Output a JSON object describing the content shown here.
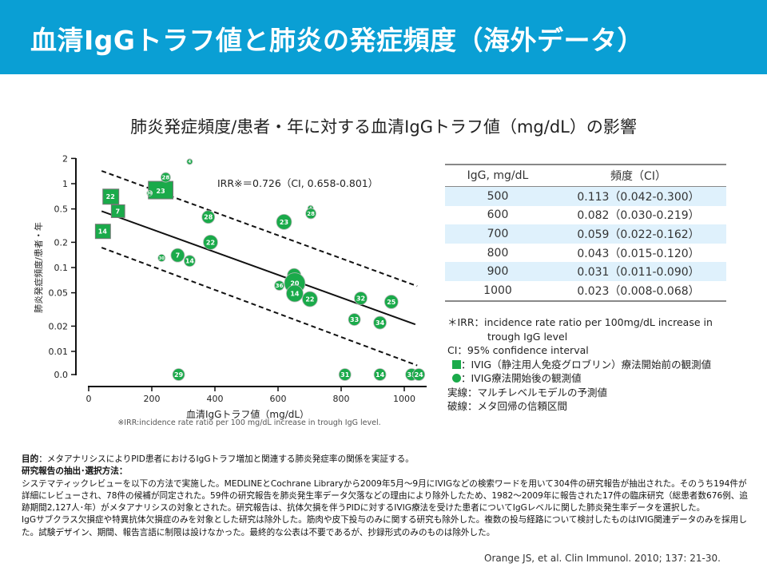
{
  "header": {
    "title": "血清IgGトラフ値と肺炎の発症頻度（海外データ）"
  },
  "subtitle": "肺炎発症頻度/患者・年に対する血清IgGトラフ値（mg/dL）の影響",
  "colors": {
    "header_bg": "#0a9fd4",
    "marker": "#1aaa4a",
    "table_stripe": "#dff1fc"
  },
  "chart_data": {
    "type": "scatter",
    "xlabel": "血清IgGトラフ値（mg/dL）",
    "ylabel": "肺炎発症頻度/患者・年",
    "xlim": [
      0,
      1050
    ],
    "x_ticks": [
      "0",
      "200",
      "400",
      "600",
      "800",
      "1000"
    ],
    "x_tick_values": [
      0,
      200,
      400,
      600,
      800,
      1000
    ],
    "y_scale": "log",
    "y_ticks": [
      "2",
      "1",
      "0.5",
      "0.2",
      "0.1",
      "0.05",
      "0.02",
      "0.01",
      "0.0"
    ],
    "y_tick_values": [
      2,
      1,
      0.5,
      0.2,
      0.1,
      0.05,
      0.02,
      0.01,
      0
    ],
    "annotation": "IRR※＝0.726（CI, 0.658-0.801）",
    "footnote": "※IRR:incidence rate ratio per 100 mg/dL increase in trough IgG level.",
    "series": [
      {
        "name": "IVIG療法開始前の観測値",
        "marker": "square",
        "points": [
          {
            "x": 69,
            "y": 0.7,
            "label": "22",
            "size": 19
          },
          {
            "x": 217,
            "y": 0.82,
            "label": "23",
            "size": 22
          },
          {
            "x": 92,
            "y": 0.47,
            "label": "7",
            "size": 16
          },
          {
            "x": 44,
            "y": 0.27,
            "label": "14",
            "size": 18
          }
        ]
      },
      {
        "name": "IVIG療法開始後の観測値",
        "marker": "circle",
        "points": [
          {
            "x": 320,
            "y": 1.83,
            "label": "4",
            "size": 7
          },
          {
            "x": 244,
            "y": 1.19,
            "label": "28",
            "size": 12
          },
          {
            "x": 193,
            "y": 0.77,
            "label": "30",
            "size": 7
          },
          {
            "x": 379,
            "y": 0.4,
            "label": "28",
            "size": 16
          },
          {
            "x": 619,
            "y": 0.35,
            "label": "23",
            "size": 19
          },
          {
            "x": 703,
            "y": 0.51,
            "label": "4",
            "size": 7
          },
          {
            "x": 704,
            "y": 0.44,
            "label": "28",
            "size": 13
          },
          {
            "x": 386,
            "y": 0.2,
            "label": "22",
            "size": 18
          },
          {
            "x": 231,
            "y": 0.13,
            "label": "30",
            "size": 9
          },
          {
            "x": 282,
            "y": 0.14,
            "label": "7",
            "size": 17
          },
          {
            "x": 320,
            "y": 0.12,
            "label": "14",
            "size": 14
          },
          {
            "x": 604,
            "y": 0.061,
            "label": "36",
            "size": 12
          },
          {
            "x": 651,
            "y": 0.081,
            "label": "7",
            "size": 17
          },
          {
            "x": 653,
            "y": 0.065,
            "label": "20",
            "size": 26
          },
          {
            "x": 653,
            "y": 0.049,
            "label": "14",
            "size": 21
          },
          {
            "x": 701,
            "y": 0.042,
            "label": "22",
            "size": 19
          },
          {
            "x": 862,
            "y": 0.043,
            "label": "32",
            "size": 16
          },
          {
            "x": 959,
            "y": 0.039,
            "label": "25",
            "size": 17
          },
          {
            "x": 842,
            "y": 0.024,
            "label": "33",
            "size": 15
          },
          {
            "x": 923,
            "y": 0.022,
            "label": "34",
            "size": 16
          },
          {
            "x": 285,
            "y": 0,
            "label": "29",
            "size": 15
          },
          {
            "x": 812,
            "y": 0,
            "label": "31",
            "size": 15
          },
          {
            "x": 923,
            "y": 0,
            "label": "14",
            "size": 15
          },
          {
            "x": 1023,
            "y": 0,
            "label": "35",
            "size": 15
          },
          {
            "x": 1046,
            "y": 0,
            "label": "24",
            "size": 15
          }
        ]
      }
    ],
    "lines": [
      {
        "name": "マルチレベルモデルの予測値",
        "style": "solid",
        "x": [
          41,
          1035
        ],
        "y": [
          0.47,
          0.021
        ]
      },
      {
        "name": "信頼区間上限",
        "style": "dashed",
        "x": [
          41,
          1041
        ],
        "y": [
          1.42,
          0.06
        ]
      },
      {
        "name": "信頼区間下限",
        "style": "dashed",
        "x": [
          41,
          1041
        ],
        "y": [
          0.173,
          0.0068
        ]
      }
    ]
  },
  "table": {
    "headers": [
      "IgG, mg/dL",
      "頻度（CI）"
    ],
    "rows": [
      [
        "500",
        "0.113（0.042-0.300）"
      ],
      [
        "600",
        "0.082（0.030-0.219）"
      ],
      [
        "700",
        "0.059（0.022-0.162）"
      ],
      [
        "800",
        "0.043（0.015-0.120）"
      ],
      [
        "900",
        "0.031（0.011-0.090）"
      ],
      [
        "1000",
        "0.023（0.008-0.068）"
      ]
    ]
  },
  "notes": {
    "irr_1": "＊IRR：incidence rate ratio per 100mg/dL increase in",
    "irr_2": "trough IgG level",
    "ci": "CI：95% confidence interval",
    "square": "：IVIG（静注用人免疫グロブリン）療法開始前の観測値",
    "circle": "：IVIG療法開始後の観測値",
    "solid": "実線：マルチレベルモデルの予測値",
    "dashed": "破線：メタ回帰の信頼区間"
  },
  "method": {
    "purpose_label": "目的",
    "purpose": "：メタアナリシスによりPID患者におけるIgGトラフ増加と関連する肺炎発症率の関係を実証する。",
    "method_label": "研究報告の抽出･選択方法：",
    "body_1": "システマティックレビューを以下の方法で実施した。MEDLINEとCochrane Libraryから2009年5月～9月にIVIGなどの検索ワードを用いて304件の研究報告が抽出された。そのうち194件が詳細にレビューされ、78件の候補が同定された。59件の研究報告を肺炎発生率データ欠落などの理由により除外したため、1982～2009年に報告された17件の臨床研究（総患者数676例、追跡期間2,127人･年）がメタアナリシスの対象とされた。研究報告は、抗体欠損を伴うPIDに対するIVIG療法を受けた患者についてIgGレベルに関した肺炎発生率データを選択した。",
    "body_2": "IgGサブクラス欠損症や特異抗体欠損症のみを対象とした研究は除外した。筋肉や皮下投与のみに関する研究も除外した。複数の投与経路について検討したものはIVIG関連データのみを採用した。試験デザイン、期間、報告言語に制限は設けなかった。最終的な公表は不要であるが、抄録形式のみのものは除外した。"
  },
  "citation": "Orange JS, et al. Clin Immunol. 2010; 137: 21-30."
}
